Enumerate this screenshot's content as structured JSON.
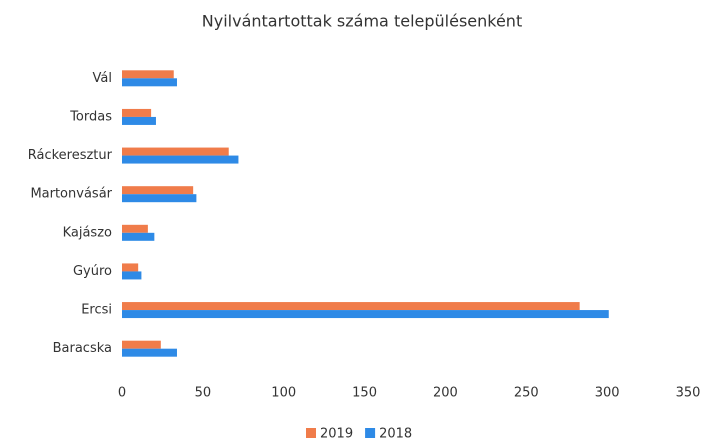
{
  "chart_data": {
    "type": "barh",
    "title": "Nyilvántartottak száma településenként",
    "categories": [
      "Vál",
      "Tordas",
      "Ráckeresztur",
      "Martonvásár",
      "Kajászo",
      "Gyúro",
      "Ercsi",
      "Baracska"
    ],
    "series": [
      {
        "name": "2019",
        "color": "#f07c4a",
        "values": [
          32,
          18,
          66,
          44,
          16,
          10,
          283,
          24
        ]
      },
      {
        "name": "2018",
        "color": "#2e8ae6",
        "values": [
          34,
          21,
          72,
          46,
          20,
          12,
          301,
          34
        ]
      }
    ],
    "xlim": [
      0,
      350
    ],
    "xticks": [
      0,
      50,
      100,
      150,
      200,
      250,
      300,
      350
    ],
    "grid": false,
    "legend": "bottom"
  }
}
